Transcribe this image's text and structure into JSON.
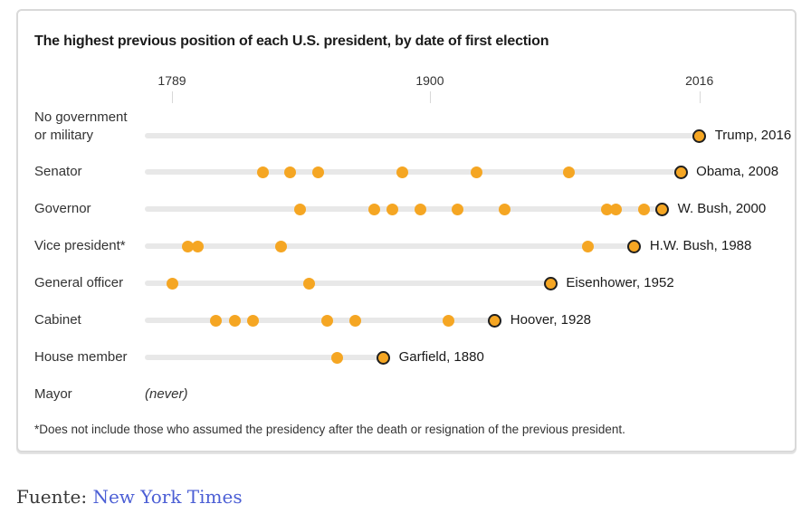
{
  "chart_data": {
    "type": "scatter",
    "subtype": "dot-timeline",
    "title": "The highest previous position of each U.S. president, by date of first election",
    "x_axis": {
      "min": 1789,
      "max": 2016,
      "tick_years": [
        1789,
        1900,
        2016
      ],
      "tick_labels": [
        "1789",
        "1900",
        "2016"
      ]
    },
    "rows": [
      {
        "label": "No government or military",
        "years": [
          2016
        ],
        "end_label": "Trump, 2016"
      },
      {
        "label": "Senator",
        "years": [
          1828,
          1840,
          1852,
          1888,
          1920,
          1960,
          2008
        ],
        "end_label": "Obama, 2008"
      },
      {
        "label": "Governor",
        "years": [
          1844,
          1876,
          1884,
          1896,
          1912,
          1932,
          1976,
          1980,
          1992,
          2000
        ],
        "end_label": "W. Bush, 2000"
      },
      {
        "label": "Vice president*",
        "years": [
          1796,
          1800,
          1836,
          1968,
          1988
        ],
        "end_label": "H.W. Bush, 1988"
      },
      {
        "label": "General officer",
        "years": [
          1789,
          1848,
          1952
        ],
        "end_label": "Eisenhower, 1952"
      },
      {
        "label": "Cabinet",
        "years": [
          1808,
          1816,
          1824,
          1856,
          1868,
          1908,
          1928
        ],
        "end_label": "Hoover, 1928"
      },
      {
        "label": "House member",
        "years": [
          1860,
          1880
        ],
        "end_label": "Garfield, 1880"
      },
      {
        "label": "Mayor",
        "years": [],
        "note": "(never)"
      }
    ],
    "footnote": "*Does not include those who assumed the presidency after the death or resignation of the previous president.",
    "legend": "none",
    "grid": "off",
    "colors": {
      "dot": "#F5A623",
      "dot_ring": "#1F1F1F",
      "track": "#E8E8E8"
    }
  },
  "source": {
    "prefix": "Fuente:",
    "link_text": "New York Times",
    "link_color": "#4C5FD5"
  }
}
